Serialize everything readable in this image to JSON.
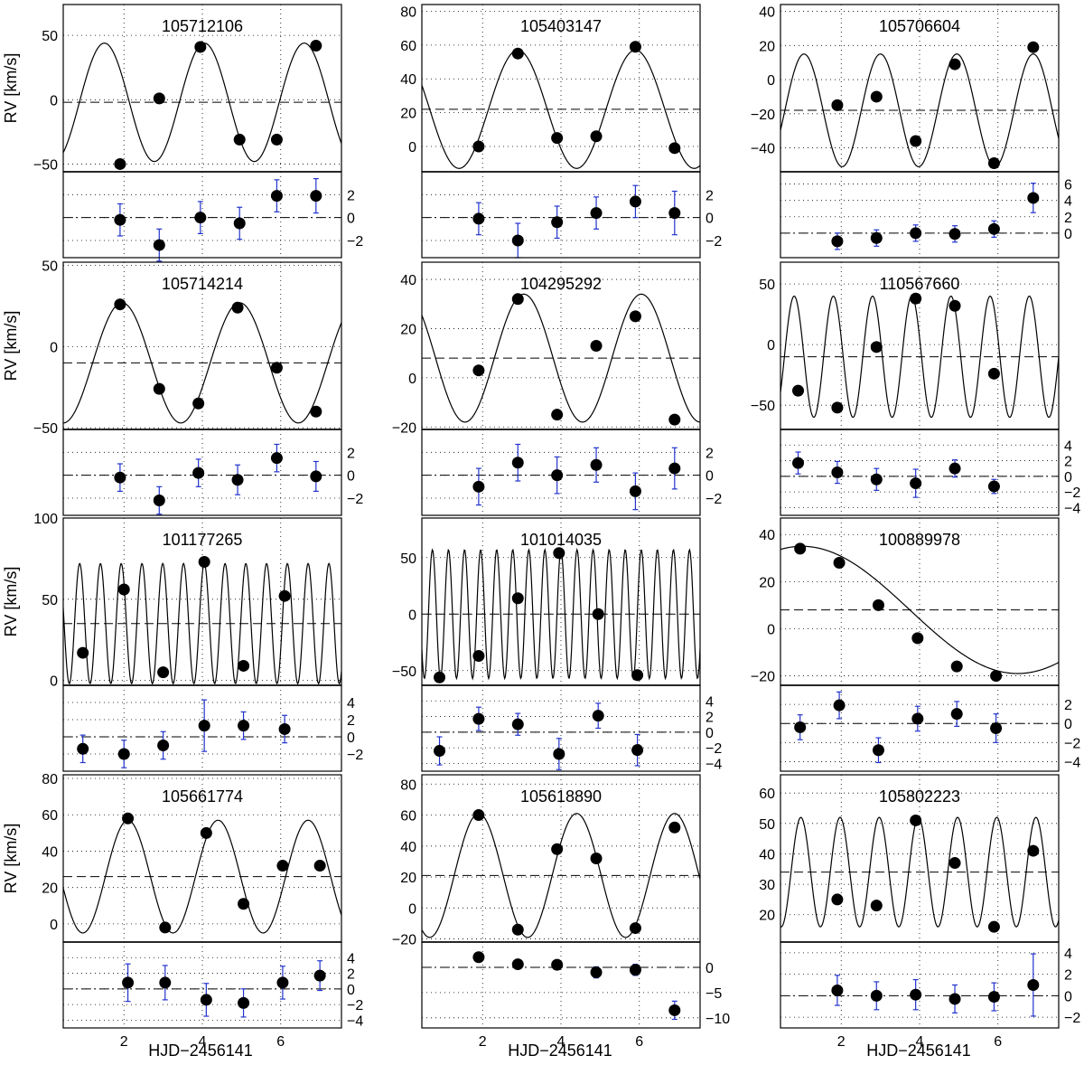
{
  "figure": {
    "xlabel": "HJD−2456141",
    "ylabel": "RV [km/s]",
    "xlim": [
      0.45,
      7.55
    ],
    "xticks": [
      2,
      4,
      6
    ]
  },
  "chart_data": [
    {
      "type": "scatter",
      "title": "105712106",
      "ylim": [
        -56,
        74
      ],
      "yticks": [
        -50,
        0,
        50
      ],
      "mean": -2,
      "model": {
        "amp": 46,
        "period": 2.55,
        "tmax": 4.05,
        "offset": -2
      },
      "x": [
        1.9,
        2.9,
        3.95,
        4.95,
        5.9,
        6.9
      ],
      "y": [
        -50,
        1,
        41,
        -31,
        -31,
        42
      ],
      "residuals": {
        "ylim": [
          -3.5,
          4
        ],
        "yticks": [
          -2,
          0,
          2
        ],
        "y": [
          -0.2,
          -2.4,
          0,
          -0.5,
          1.9,
          1.9
        ],
        "err": [
          1.4,
          1.4,
          1.4,
          1.4,
          1.4,
          1.5
        ]
      }
    },
    {
      "type": "scatter",
      "title": "105403147",
      "ylim": [
        -15,
        84
      ],
      "yticks": [
        0,
        20,
        40,
        60,
        80
      ],
      "mean": 22,
      "model": {
        "amp": 35,
        "period": 3.0,
        "tmax": 2.9,
        "offset": 22
      },
      "x": [
        1.9,
        2.9,
        3.9,
        4.9,
        5.9,
        6.9
      ],
      "y": [
        0,
        55,
        5,
        6,
        59,
        -1
      ],
      "residuals": {
        "ylim": [
          -3.5,
          4
        ],
        "yticks": [
          -2,
          0,
          2
        ],
        "y": [
          -0.1,
          -2,
          -0.4,
          0.4,
          1.4,
          0.4
        ],
        "err": [
          1.4,
          1.5,
          1.4,
          1.4,
          1.4,
          1.9
        ]
      }
    },
    {
      "type": "scatter",
      "title": "105706604",
      "ylim": [
        -54,
        44
      ],
      "yticks": [
        -40,
        -20,
        0,
        20,
        40
      ],
      "mean": -18,
      "model": {
        "amp": 33,
        "period": 1.95,
        "tmax": 3.0,
        "offset": -18
      },
      "x": [
        1.9,
        2.9,
        3.9,
        4.9,
        5.9,
        6.9
      ],
      "y": [
        -15,
        -10,
        -36,
        9,
        -49,
        19
      ],
      "residuals": {
        "ylim": [
          -3,
          7.5
        ],
        "yticks": [
          0,
          2,
          4,
          6
        ],
        "y": [
          -1,
          -0.6,
          0,
          -0.1,
          0.5,
          4.3
        ],
        "err": [
          1,
          1,
          1,
          1,
          1,
          1.8
        ]
      }
    },
    {
      "type": "scatter",
      "title": "105714214",
      "ylim": [
        -51,
        52
      ],
      "yticks": [
        -50,
        0,
        50
      ],
      "mean": -10,
      "model": {
        "amp": 37,
        "period": 3.0,
        "tmax": 1.95,
        "offset": -10
      },
      "x": [
        1.9,
        2.9,
        3.9,
        4.9,
        5.9,
        6.9
      ],
      "y": [
        26,
        -26,
        -35,
        24,
        -13,
        -40
      ],
      "residuals": {
        "ylim": [
          -3.5,
          4
        ],
        "yticks": [
          -2,
          0,
          2
        ],
        "y": [
          -0.2,
          -2.2,
          0.2,
          -0.4,
          1.5,
          -0.1
        ],
        "err": [
          1.2,
          1.2,
          1.2,
          1.3,
          1.2,
          1.3
        ]
      }
    },
    {
      "type": "scatter",
      "title": "104295292",
      "ylim": [
        -21,
        47
      ],
      "yticks": [
        -20,
        0,
        20,
        40
      ],
      "mean": 8,
      "model": {
        "amp": 26,
        "period": 3.0,
        "tmax": 3.05,
        "offset": 8
      },
      "x": [
        1.9,
        2.9,
        3.9,
        4.9,
        5.9,
        6.9
      ],
      "y": [
        3,
        32,
        -15,
        13,
        25,
        -17
      ],
      "residuals": {
        "ylim": [
          -3.5,
          4
        ],
        "yticks": [
          -2,
          0,
          2
        ],
        "y": [
          -1,
          1.1,
          0,
          0.9,
          -1.4,
          0.6
        ],
        "err": [
          1.6,
          1.6,
          1.6,
          1.5,
          1.6,
          1.8
        ]
      }
    },
    {
      "type": "scatter",
      "title": "110567660",
      "ylim": [
        -70,
        68
      ],
      "yticks": [
        -50,
        0,
        50
      ],
      "mean": -10,
      "model": {
        "amp": 50,
        "period": 1.0,
        "tmax": 0.8,
        "offset": -10
      },
      "x": [
        0.9,
        1.9,
        2.9,
        3.9,
        4.9,
        5.9
      ],
      "y": [
        -38,
        -52,
        -2,
        38,
        32,
        -24
      ],
      "residuals": {
        "ylim": [
          -5,
          6
        ],
        "yticks": [
          -4,
          -2,
          0,
          2,
          4
        ],
        "y": [
          1.7,
          0.5,
          -0.4,
          -0.9,
          1,
          -1.3
        ],
        "err": [
          1.4,
          1.4,
          1.4,
          1.8,
          1.1,
          0.9
        ]
      }
    },
    {
      "type": "scatter",
      "title": "101177265",
      "ylim": [
        -3,
        100
      ],
      "yticks": [
        0,
        50,
        100
      ],
      "mean": 35,
      "model": {
        "amp": 37,
        "period": 0.53,
        "tmax": 4.05,
        "offset": 35
      },
      "x": [
        0.95,
        2.0,
        3.0,
        4.05,
        5.05,
        6.1
      ],
      "y": [
        17,
        56,
        5,
        73,
        9,
        52
      ],
      "residuals": {
        "ylim": [
          -4,
          6
        ],
        "yticks": [
          -2,
          0,
          2,
          4
        ],
        "y": [
          -1.4,
          -2,
          -1,
          1.3,
          1.3,
          0.9
        ],
        "err": [
          1.6,
          1.6,
          1.6,
          3,
          1.6,
          1.6
        ]
      }
    },
    {
      "type": "scatter",
      "title": "101014035",
      "ylim": [
        -63,
        85
      ],
      "yticks": [
        -50,
        0,
        50
      ],
      "mean": 0,
      "model": {
        "amp": 57,
        "period": 0.41,
        "tmax": 4.0,
        "offset": 0
      },
      "x": [
        0.9,
        1.9,
        2.9,
        3.95,
        4.95,
        5.95
      ],
      "y": [
        -56,
        -37,
        14,
        54,
        0,
        -54
      ],
      "residuals": {
        "ylim": [
          -5,
          6
        ],
        "yticks": [
          -4,
          -2,
          0,
          2,
          4
        ],
        "y": [
          -2.4,
          1.7,
          1,
          -2.8,
          2.1,
          -2.3
        ],
        "err": [
          1.8,
          1.5,
          1.4,
          2,
          1.6,
          2
        ]
      }
    },
    {
      "type": "scatter",
      "title": "100889978",
      "ylim": [
        -24,
        47
      ],
      "yticks": [
        -20,
        0,
        20,
        40
      ],
      "mean": 8,
      "model": {
        "amp": 27,
        "period": 11.0,
        "tmax": 1.0,
        "offset": 8
      },
      "x": [
        0.95,
        1.95,
        2.95,
        3.95,
        4.95,
        5.95
      ],
      "y": [
        34,
        28,
        10,
        -4,
        -16,
        -20
      ],
      "residuals": {
        "ylim": [
          -5,
          4
        ],
        "yticks": [
          -4,
          -2,
          0,
          2
        ],
        "y": [
          -0.4,
          1.9,
          -2.8,
          0.5,
          1,
          -0.5
        ],
        "err": [
          1.3,
          1.4,
          1.3,
          1.3,
          1.3,
          1.5
        ]
      }
    },
    {
      "type": "scatter",
      "title": "105661774",
      "ylim": [
        -10,
        82
      ],
      "yticks": [
        0,
        20,
        40,
        60,
        80
      ],
      "mean": 26,
      "model": {
        "amp": 31,
        "period": 2.3,
        "tmax": 2.1,
        "offset": 26
      },
      "x": [
        2.1,
        3.05,
        4.1,
        5.05,
        6.05,
        7.0
      ],
      "y": [
        58,
        -2,
        50,
        11,
        32,
        32
      ],
      "residuals": {
        "ylim": [
          -5,
          6
        ],
        "yticks": [
          -4,
          -2,
          0,
          2,
          4
        ],
        "y": [
          0.8,
          0.8,
          -1.4,
          -1.8,
          0.8,
          1.7
        ],
        "err": [
          2.4,
          2.2,
          2.1,
          1.8,
          2.1,
          1.9
        ]
      }
    },
    {
      "type": "scatter",
      "title": "105618890",
      "ylim": [
        -22,
        86
      ],
      "yticks": [
        -20,
        0,
        20,
        40,
        60,
        80
      ],
      "mean": 21,
      "model": {
        "amp": 40,
        "period": 2.5,
        "tmax": 1.9,
        "offset": 21
      },
      "x": [
        1.9,
        2.9,
        3.9,
        4.9,
        5.9,
        6.9
      ],
      "y": [
        60,
        -14,
        38,
        32,
        -13,
        52
      ],
      "residuals": {
        "ylim": [
          -12,
          5
        ],
        "yticks": [
          -10,
          -5,
          0
        ],
        "y": [
          2,
          0.6,
          0.5,
          -1,
          -0.5,
          -8.5
        ],
        "err": [
          0.9,
          0.9,
          0.9,
          1.1,
          1.1,
          1.8
        ]
      }
    },
    {
      "type": "scatter",
      "title": "105802223",
      "ylim": [
        11,
        66
      ],
      "yticks": [
        20,
        30,
        40,
        50,
        60
      ],
      "mean": 34,
      "model": {
        "amp": 18,
        "period": 1.0,
        "tmax": 0.97,
        "offset": 34
      },
      "x": [
        1.9,
        2.9,
        3.9,
        4.9,
        5.9,
        6.9
      ],
      "y": [
        25,
        23,
        51,
        37,
        16,
        41
      ],
      "residuals": {
        "ylim": [
          -3,
          5
        ],
        "yticks": [
          -2,
          0,
          2,
          4
        ],
        "y": [
          0.5,
          0,
          0.1,
          -0.3,
          -0.1,
          1
        ],
        "err": [
          1.4,
          1.3,
          1.4,
          1.3,
          1.3,
          2.9
        ]
      }
    }
  ]
}
